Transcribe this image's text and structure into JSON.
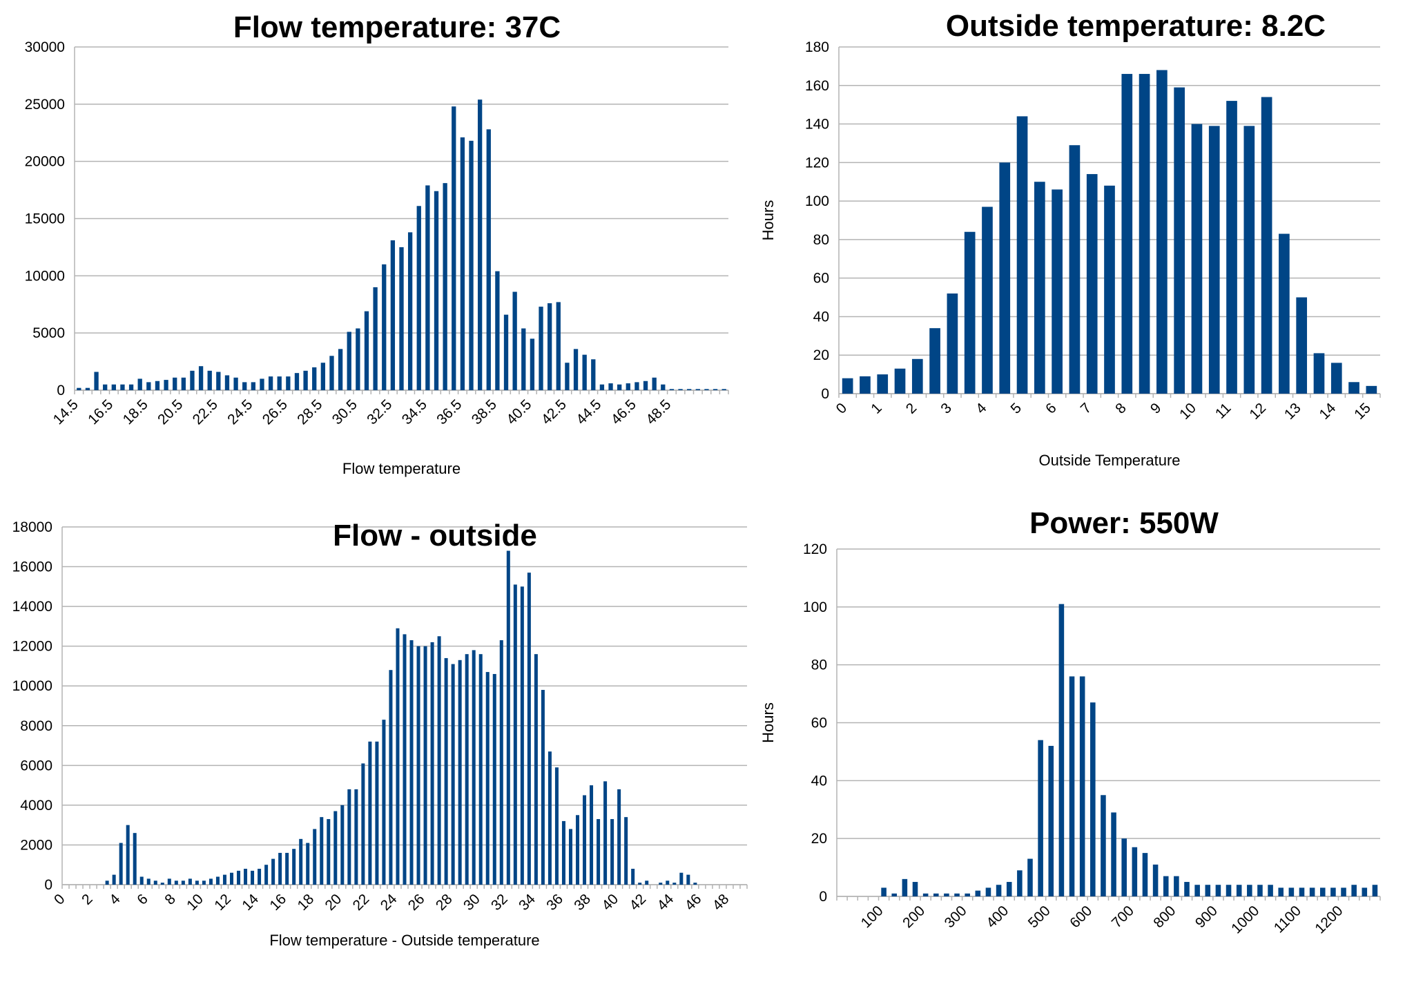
{
  "chart_data": [
    {
      "id": "flow",
      "type": "bar",
      "title": "Flow temperature: 37C",
      "xlabel": "Flow temperature",
      "ylabel": "",
      "ylim": [
        0,
        30000
      ],
      "yticks": [
        0,
        5000,
        10000,
        15000,
        20000,
        25000,
        30000
      ],
      "x_start": 14.5,
      "x_step": 0.5,
      "xtick_labels": [
        "14.5",
        "16.5",
        "18.5",
        "20.5",
        "22.5",
        "24.5",
        "26.5",
        "28.5",
        "30.5",
        "32.5",
        "34.5",
        "36.5",
        "38.5",
        "40.5",
        "42.5",
        "44.5",
        "46.5",
        "48.5"
      ],
      "xtick_every": 4,
      "values": [
        200,
        200,
        1600,
        500,
        500,
        500,
        500,
        1000,
        700,
        800,
        900,
        1100,
        1100,
        1700,
        2100,
        1700,
        1600,
        1300,
        1100,
        700,
        700,
        1000,
        1200,
        1200,
        1200,
        1500,
        1700,
        2000,
        2400,
        3000,
        3600,
        5100,
        5400,
        6900,
        9000,
        11000,
        13100,
        12500,
        13800,
        16100,
        17900,
        17400,
        18100,
        24800,
        22100,
        21800,
        25400,
        22800,
        10400,
        6600,
        8600,
        5400,
        4500,
        7300,
        7600,
        7700,
        2400,
        3600,
        3100,
        2700,
        500,
        600,
        500,
        600,
        700,
        800,
        1100,
        500,
        100,
        100,
        100,
        100,
        100,
        100,
        100
      ]
    },
    {
      "id": "outside",
      "type": "bar",
      "title": "Outside temperature: 8.2C",
      "xlabel": "Outside Temperature",
      "ylabel": "Hours",
      "ylim": [
        0,
        180
      ],
      "yticks": [
        0,
        20,
        40,
        60,
        80,
        100,
        120,
        140,
        160,
        180
      ],
      "x_start": 0,
      "x_step": 0.5,
      "xtick_labels": [
        "0",
        "1",
        "2",
        "3",
        "4",
        "5",
        "6",
        "7",
        "8",
        "9",
        "10",
        "11",
        "12",
        "13",
        "14",
        "15"
      ],
      "xtick_every": 2,
      "values": [
        8,
        9,
        10,
        13,
        18,
        34,
        52,
        84,
        97,
        120,
        144,
        110,
        106,
        129,
        114,
        108,
        166,
        166,
        168,
        159,
        140,
        139,
        152,
        139,
        154,
        83,
        50,
        21,
        16,
        6,
        4
      ]
    },
    {
      "id": "diff",
      "type": "bar",
      "title": "Flow - outside",
      "xlabel": "Flow temperature - Outside temperature",
      "ylabel": "",
      "ylim": [
        0,
        18000
      ],
      "yticks": [
        0,
        2000,
        4000,
        6000,
        8000,
        10000,
        12000,
        14000,
        16000,
        18000
      ],
      "x_start": 0,
      "x_step": 0.5,
      "xtick_labels": [
        "0",
        "2",
        "4",
        "6",
        "8",
        "10",
        "12",
        "14",
        "16",
        "18",
        "20",
        "22",
        "24",
        "26",
        "28",
        "30",
        "32",
        "34",
        "36",
        "38",
        "40",
        "42",
        "44",
        "46",
        "48"
      ],
      "xtick_every": 4,
      "values": [
        0,
        0,
        0,
        0,
        0,
        0,
        200,
        500,
        2100,
        3000,
        2600,
        400,
        300,
        200,
        100,
        300,
        200,
        200,
        300,
        200,
        200,
        300,
        400,
        500,
        600,
        700,
        800,
        700,
        800,
        1000,
        1300,
        1600,
        1600,
        1800,
        2300,
        2100,
        2800,
        3400,
        3300,
        3700,
        4000,
        4800,
        4800,
        6100,
        7200,
        7200,
        8300,
        10800,
        12900,
        12600,
        12300,
        12000,
        12000,
        12200,
        12500,
        11400,
        11100,
        11300,
        11600,
        11800,
        11600,
        10700,
        10600,
        12300,
        16800,
        15100,
        15000,
        15700,
        11600,
        9800,
        6700,
        5900,
        3200,
        2800,
        3500,
        4500,
        5000,
        3300,
        5200,
        3300,
        4800,
        3400,
        800,
        100,
        200,
        0,
        100,
        200,
        100,
        600,
        500,
        100,
        0,
        0,
        0,
        0,
        0,
        0,
        0
      ]
    },
    {
      "id": "power",
      "type": "bar",
      "title": "Power: 550W",
      "xlabel": "",
      "ylabel": "Hours",
      "ylim": [
        0,
        120
      ],
      "yticks": [
        0,
        20,
        40,
        60,
        80,
        100,
        120
      ],
      "x_start": 0,
      "x_step": 25,
      "xtick_labels": [
        "100",
        "200",
        "300",
        "400",
        "500",
        "600",
        "700",
        "800",
        "900",
        "1000",
        "1100",
        "1200"
      ],
      "xtick_first_index": 4,
      "xtick_every": 4,
      "values": [
        0,
        0,
        0,
        0,
        3,
        1,
        6,
        5,
        1,
        1,
        1,
        1,
        1,
        2,
        3,
        4,
        5,
        9,
        13,
        54,
        52,
        101,
        76,
        76,
        67,
        35,
        29,
        20,
        17,
        15,
        11,
        7,
        7,
        5,
        4,
        4,
        4,
        4,
        4,
        4,
        4,
        4,
        3,
        3,
        3,
        3,
        3,
        3,
        3,
        4,
        3,
        4
      ]
    }
  ]
}
